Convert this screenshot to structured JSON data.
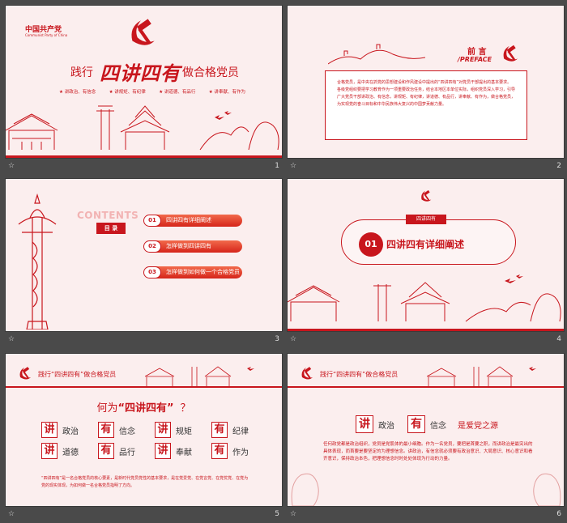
{
  "captions": {
    "icon": "☆",
    "n1": "1",
    "n2": "2",
    "n3": "3",
    "n4": "4",
    "n5": "5",
    "n6": "6"
  },
  "s1": {
    "org": "中国共产党",
    "org_en": "Communist Party of China",
    "t_left": "践行",
    "t_mid": "四讲四有",
    "t_right": "做合格党员",
    "bullets": [
      "讲政治、有信念",
      "讲规矩、有纪律",
      "讲道德、有品行",
      "讲奉献、有作为"
    ]
  },
  "s2": {
    "title": "前 言",
    "subtitle": "/PREFACE",
    "body": "合格党员，是中央在抓党的思想建设和作风建设中提出的“四讲四有”对党员干部提出的基本要求。各级党组织要把学习教育作为一项重要政治任务，结合本地区本单位实际，组织党员深入学习，引导广大党员干部讲政治、有信念，讲规矩、有纪律，讲道德、有品行，讲奉献、有作为，做合格党员，为实现党的奋斗目标和中华民族伟大复兴的中国梦贡献力量。"
  },
  "s3": {
    "contents": "CONTENTS",
    "label": "目 录",
    "items": [
      {
        "num": "01",
        "text": "四讲四有详细阐述"
      },
      {
        "num": "02",
        "text": "怎样做到四讲四有"
      },
      {
        "num": "03",
        "text": "怎样做到如何做一个合格党员"
      }
    ]
  },
  "s4": {
    "tag": "四讲四有",
    "num": "01",
    "title": "四讲四有详细阐述"
  },
  "s5": {
    "header": "践行“四讲四有”做合格党员",
    "question_a": "何为",
    "question_b": "“四讲四有”",
    "question_c": "？",
    "rows": [
      [
        {
          "c": "讲",
          "t": "政治"
        },
        {
          "c": "有",
          "t": "信念"
        },
        {
          "c": "讲",
          "t": "规矩"
        },
        {
          "c": "有",
          "t": "纪律"
        }
      ],
      [
        {
          "c": "讲",
          "t": "道德"
        },
        {
          "c": "有",
          "t": "品行"
        },
        {
          "c": "讲",
          "t": "奉献"
        },
        {
          "c": "有",
          "t": "作为"
        }
      ]
    ],
    "foot": "“四讲四有”是一名合格党员的核心要素，是新时代党员党性的基本要求，是在党爱党、在党言党、在党忧党、在党为党的现实体现，为如何做一名合格党员指明了方向。"
  },
  "s6": {
    "header": "践行“四讲四有”做合格党员",
    "c1": "讲",
    "t1": "政治",
    "c2": "有",
    "t2": "信念",
    "tail": "是爱党之源",
    "body": "任何政党都是政治组织，党员是党肌体的最小细胞。作为一名党员，要把是首要之职，而讲政治是最突出的具体表现，而首要是要坚定的为理想信念。讲政治，有信念就必须要有政治意识、大局意识、核心意识和看齐意识，保持政治本色，把理想信念时时处处体现为行动的力量。"
  }
}
